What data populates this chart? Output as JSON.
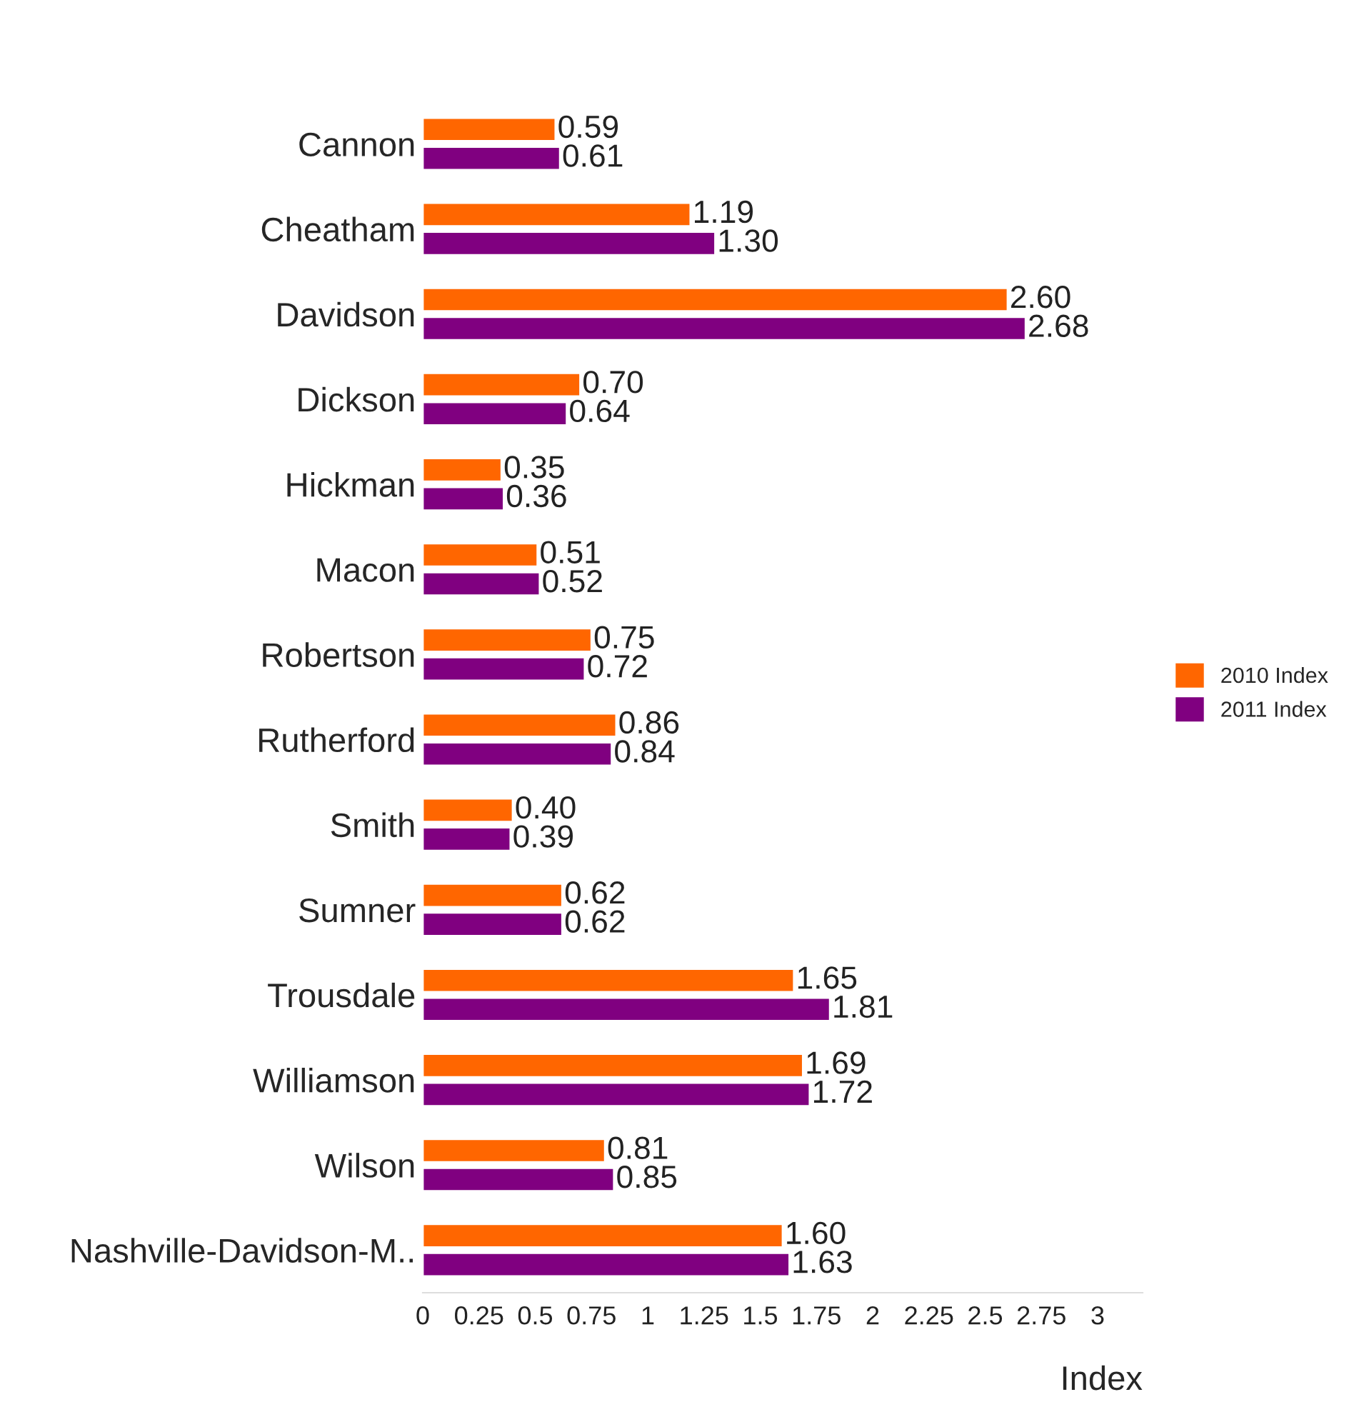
{
  "chart_data": {
    "type": "bar",
    "orientation": "horizontal",
    "xlabel": "Index",
    "categories": [
      "Cannon",
      "Cheatham",
      "Davidson",
      "Dickson",
      "Hickman",
      "Macon",
      "Robertson",
      "Rutherford",
      "Smith",
      "Sumner",
      "Trousdale",
      "Williamson",
      "Wilson",
      "Nashville-Davidson-M.."
    ],
    "series": [
      {
        "name": "2010 Index",
        "color": "#ff6600",
        "values": [
          0.59,
          1.19,
          2.6,
          0.7,
          0.35,
          0.51,
          0.75,
          0.86,
          0.4,
          0.62,
          1.65,
          1.69,
          0.81,
          1.6
        ],
        "value_labels": [
          "0.59",
          "1.19",
          "2.60",
          "0.70",
          "0.35",
          "0.51",
          "0.75",
          "0.86",
          "0.40",
          "0.62",
          "1.65",
          "1.69",
          "0.81",
          "1.60"
        ]
      },
      {
        "name": "2011 Index",
        "color": "#800080",
        "values": [
          0.61,
          1.3,
          2.68,
          0.64,
          0.36,
          0.52,
          0.72,
          0.84,
          0.39,
          0.62,
          1.81,
          1.72,
          0.85,
          1.63
        ],
        "value_labels": [
          "0.61",
          "1.30",
          "2.68",
          "0.64",
          "0.36",
          "0.52",
          "0.72",
          "0.84",
          "0.39",
          "0.62",
          "1.81",
          "1.72",
          "0.85",
          "1.63"
        ]
      }
    ],
    "xlim": [
      0,
      3.2
    ],
    "xticks": [
      0,
      0.25,
      0.5,
      0.75,
      1,
      1.25,
      1.5,
      1.75,
      2,
      2.25,
      2.5,
      2.75,
      3
    ],
    "grid": false,
    "legend": "right"
  }
}
